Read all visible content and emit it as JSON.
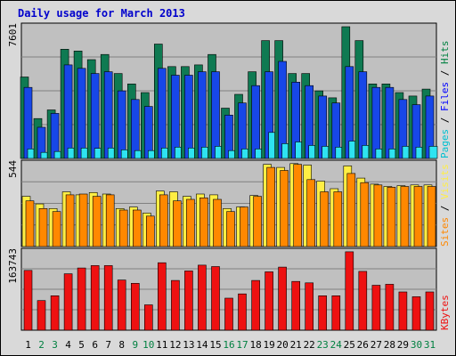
{
  "chart_data": {
    "type": "bar",
    "title": "Daily usage for March 2013",
    "days": [
      "1",
      "2",
      "3",
      "4",
      "5",
      "6",
      "7",
      "8",
      "9",
      "10",
      "11",
      "12",
      "13",
      "14",
      "15",
      "16",
      "17",
      "18",
      "19",
      "20",
      "21",
      "22",
      "23",
      "24",
      "25",
      "26",
      "27",
      "28",
      "29",
      "30",
      "31"
    ],
    "weekend_days": [
      "2",
      "3",
      "9",
      "10",
      "16",
      "17",
      "23",
      "24",
      "30",
      "31"
    ],
    "colors": {
      "pages": "#1747e8",
      "files": "#2ee3f1",
      "hits": "#0f7a52",
      "sites": "#ff8800",
      "visits": "#ffee44",
      "kbytes": "#ee1111",
      "weekday_label": "#000000",
      "weekend_label": "#008040",
      "background": "#c0c0c0",
      "frame": "#d9d9d9"
    },
    "panels": [
      {
        "id": "hits-files-pages",
        "ymax_label": "7601",
        "ymax": 7601,
        "legend": [
          {
            "text": "Pages",
            "color": "#00c0d0"
          },
          {
            "text": " / ",
            "color": "#000000"
          },
          {
            "text": "Files",
            "color": "#0000ff"
          },
          {
            "text": " / ",
            "color": "#000000"
          },
          {
            "text": "Hits",
            "color": "#008040"
          }
        ],
        "series": [
          {
            "name": "Hits",
            "color": "#0f7a52",
            "values": [
              4700,
              2300,
              2800,
              6300,
              6200,
              5700,
              6000,
              4900,
              4300,
              3800,
              6600,
              5300,
              5300,
              5400,
              6000,
              2900,
              3700,
              5000,
              6800,
              6800,
              4900,
              4900,
              3900,
              3500,
              7600,
              6800,
              4300,
              4300,
              3800,
              3600,
              4000
            ]
          },
          {
            "name": "Files",
            "color": "#1747e8",
            "values": [
              4100,
              1800,
              2600,
              5400,
              5200,
              4900,
              5000,
              3900,
              3400,
              3000,
              5200,
              4800,
              4800,
              5000,
              5000,
              2500,
              3200,
              4200,
              5000,
              5600,
              4400,
              4200,
              3600,
              3200,
              5300,
              5000,
              4100,
              4100,
              3400,
              3100,
              3600
            ]
          },
          {
            "name": "Pages",
            "color": "#2ee3f1",
            "values": [
              550,
              350,
              400,
              600,
              600,
              580,
              600,
              500,
              450,
              450,
              600,
              650,
              600,
              650,
              700,
              450,
              550,
              550,
              1500,
              850,
              950,
              750,
              700,
              650,
              1000,
              750,
              550,
              550,
              700,
              650,
              700
            ]
          }
        ]
      },
      {
        "id": "visits-sites",
        "ymax_label": "544",
        "ymax": 544,
        "legend": [
          {
            "text": "Sites",
            "color": "#ff8800"
          },
          {
            "text": " / ",
            "color": "#000000"
          },
          {
            "text": "Visits",
            "color": "#ffee44"
          }
        ],
        "series": [
          {
            "name": "Visits",
            "color": "#ffee44",
            "values": [
              330,
              280,
              250,
              360,
              340,
              355,
              345,
              250,
              260,
              220,
              365,
              360,
              330,
              345,
              340,
              250,
              260,
              335,
              540,
              520,
              545,
              535,
              430,
              380,
              530,
              450,
              410,
              395,
              400,
              405,
              405
            ]
          },
          {
            "name": "Sites",
            "color": "#ff8800",
            "values": [
              300,
              250,
              230,
              340,
              345,
              330,
              340,
              240,
              240,
              200,
              340,
              300,
              310,
              320,
              310,
              230,
              260,
              330,
              520,
              500,
              540,
              440,
              360,
              360,
              480,
              420,
              405,
              390,
              395,
              395,
              395
            ]
          }
        ]
      },
      {
        "id": "kbytes",
        "ymax_label": "163743",
        "ymax": 163743,
        "legend": [
          {
            "text": "KBytes",
            "color": "#ee1111"
          }
        ],
        "series": [
          {
            "name": "KBytes",
            "color": "#ee1111",
            "values": [
              125000,
              62000,
              72000,
              118000,
              130000,
              135000,
              135000,
              105000,
              98000,
              53000,
              141000,
              104000,
              124000,
              136000,
              133000,
              67000,
              76000,
              104000,
              122000,
              132000,
              102000,
              99000,
              72000,
              72000,
              164000,
              123000,
              94000,
              96000,
              80000,
              70000,
              80000
            ]
          }
        ]
      }
    ]
  }
}
